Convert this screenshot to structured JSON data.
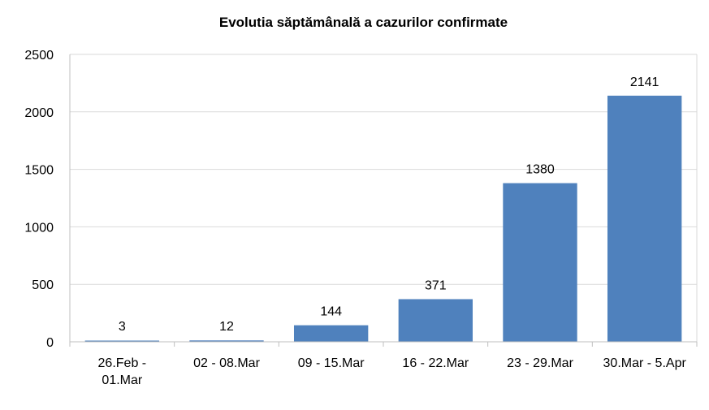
{
  "chart_data": {
    "type": "bar",
    "title": "Evolutia săptămânală a cazurilor confirmate",
    "xlabel": "",
    "ylabel": "",
    "categories": [
      "26.Feb - 01.Mar",
      "02 - 08.Mar",
      "09 - 15.Mar",
      "16 - 22.Mar",
      "23 - 29.Mar",
      "30.Mar - 5.Apr"
    ],
    "category_lines": [
      [
        "26.Feb -",
        "01.Mar"
      ],
      [
        "02 - 08.Mar"
      ],
      [
        "09 - 15.Mar"
      ],
      [
        "16 - 22.Mar"
      ],
      [
        "23 - 29.Mar"
      ],
      [
        "30.Mar - 5.Apr"
      ]
    ],
    "values": [
      3,
      12,
      144,
      371,
      1380,
      2141
    ],
    "ylim": [
      0,
      2500
    ],
    "yticks": [
      0,
      500,
      1000,
      1500,
      2000,
      2500
    ],
    "grid": true,
    "legend": "none",
    "bar_color": "#4f81bd",
    "grid_color": "#d9d9d9",
    "axis_color": "#bfbfbf"
  }
}
